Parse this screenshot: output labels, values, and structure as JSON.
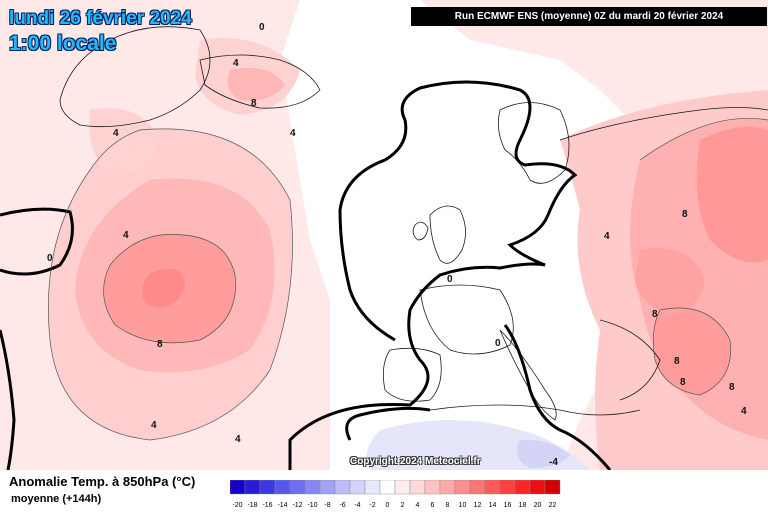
{
  "header": {
    "date": "lundi 26 février 2024",
    "time": "1:00 locale",
    "run": "Run ECMWF ENS (moyenne) 0Z du mardi 20 février 2024"
  },
  "copyright": "Copyright 2024 Meteociel.fr",
  "legend": {
    "title": "Anomalie Temp. à 850hPa (°C)",
    "subtitle": "moyenne  (+144h)",
    "values": [
      "-20",
      "-18",
      "-16",
      "-14",
      "-12",
      "-10",
      "-8",
      "-6",
      "-4",
      "-2",
      "0",
      "2",
      "4",
      "6",
      "8",
      "10",
      "12",
      "14",
      "16",
      "18",
      "20",
      "22"
    ],
    "colors": [
      "#1400c8",
      "#2a1ad8",
      "#3d36e4",
      "#5656ec",
      "#6e6ef0",
      "#8888f4",
      "#a2a2f6",
      "#bcbcf8",
      "#d2d2fa",
      "#e8e8fc",
      "#ffffff",
      "#ffecec",
      "#ffd8d8",
      "#ffc2c2",
      "#ffaaaa",
      "#ff9090",
      "#ff7474",
      "#ff5a5a",
      "#ff4040",
      "#f82626",
      "#e81010",
      "#d20000"
    ]
  },
  "contour_labels": [
    "0",
    "4",
    "8",
    "4",
    "4",
    "8",
    "4",
    "0",
    "8",
    "4",
    "8",
    "8",
    "8",
    "0",
    "0",
    "8",
    "4",
    "4",
    "4",
    "-4"
  ],
  "colors": {
    "title_text": "#26b8ff",
    "title_outline": "#08205a",
    "run_bg": "#000000",
    "zero_line": "#000000"
  }
}
